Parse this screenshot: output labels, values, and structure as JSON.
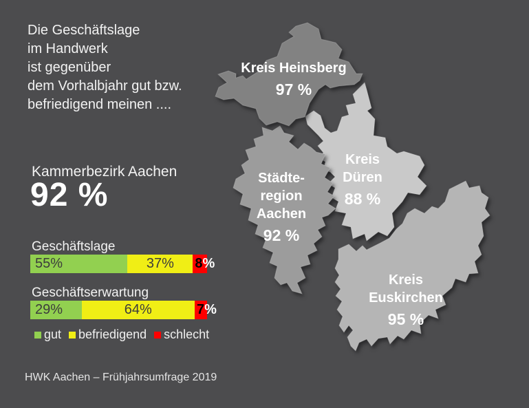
{
  "colors": {
    "background": "#4c4c4e",
    "gut": "#92d050",
    "befriedigend": "#f0ee15",
    "schlecht": "#fe0000"
  },
  "intro": {
    "lines": [
      "Die Geschäftslage",
      "im Handwerk",
      "ist gegenüber",
      "dem Vorhalbjahr gut bzw.",
      "befriedigend meinen ...."
    ]
  },
  "summary": {
    "label": "Kammerbezirk Aachen",
    "value": "92 %"
  },
  "legend": {
    "items": [
      {
        "label": "gut",
        "color": "#92d050"
      },
      {
        "label": "befriedigend",
        "color": "#f0ee15"
      },
      {
        "label": "schlecht",
        "color": "#fe0000"
      }
    ]
  },
  "footer": {
    "text": "HWK Aachen – Frühjahrsumfrage  2019"
  },
  "chart_data": [
    {
      "type": "bar",
      "stacked": true,
      "title": "Geschäftslage",
      "categories": [
        "gut",
        "befriedigend",
        "schlecht"
      ],
      "values": [
        55,
        37,
        8
      ],
      "labels": [
        "55%",
        "37%",
        "8%"
      ],
      "colors": [
        "#92d050",
        "#f0ee15",
        "#fe0000"
      ],
      "xlim": [
        0,
        100
      ],
      "unit": "%"
    },
    {
      "type": "bar",
      "stacked": true,
      "title": "Geschäftserwartung",
      "categories": [
        "gut",
        "befriedigend",
        "schlecht"
      ],
      "values": [
        29,
        64,
        7
      ],
      "labels": [
        "29%",
        "64%",
        "7%"
      ],
      "colors": [
        "#92d050",
        "#f0ee15",
        "#fe0000"
      ],
      "xlim": [
        0,
        100
      ],
      "unit": "%"
    },
    {
      "type": "map",
      "title": "Kammerbezirk Aachen",
      "unit": "%",
      "total_value": 92,
      "total_label": "92 %",
      "regions": [
        {
          "name": "Kreis Heinsberg",
          "name_lines": [
            "Kreis Heinsberg"
          ],
          "value": 97,
          "label": "97 %",
          "fill": "#828282"
        },
        {
          "name": "Städteregion Aachen",
          "name_lines": [
            "Städte-",
            "region",
            "Aachen"
          ],
          "value": 92,
          "label": "92 %",
          "fill": "#9c9c9c"
        },
        {
          "name": "Kreis Düren",
          "name_lines": [
            "Kreis",
            "Düren"
          ],
          "value": 88,
          "label": "88 %",
          "fill": "#c9c9c9"
        },
        {
          "name": "Kreis Euskirchen",
          "name_lines": [
            "Kreis",
            "Euskirchen"
          ],
          "value": 95,
          "label": "95 %",
          "fill": "#b5b5b5"
        }
      ]
    }
  ]
}
